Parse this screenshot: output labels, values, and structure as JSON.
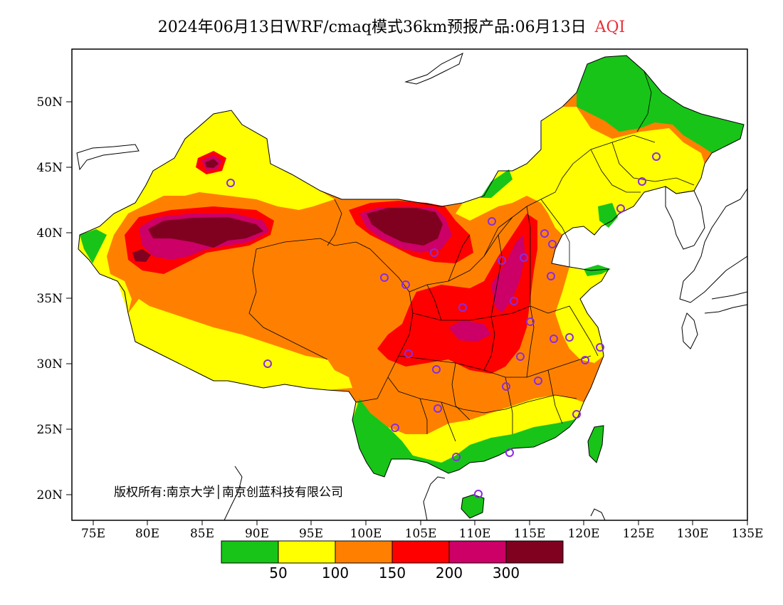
{
  "title": {
    "main": "2024年06月13日WRF/cmaq模式36km预报产品:06月13日",
    "variable": "AQI"
  },
  "axes": {
    "lat_labels": [
      "50N",
      "45N",
      "40N",
      "35N",
      "30N",
      "25N",
      "20N"
    ],
    "lon_labels": [
      "75E",
      "80E",
      "85E",
      "90E",
      "95E",
      "100E",
      "105E",
      "110E",
      "115E",
      "120E",
      "125E",
      "130E",
      "135E"
    ]
  },
  "copyright": "版权所有:南京大学│南京创蓝科技有限公司",
  "legend": {
    "colors": [
      "#18c418",
      "#ffff00",
      "#ff8000",
      "#ff0000",
      "#cc0066",
      "#800020"
    ],
    "labels": [
      "50",
      "100",
      "150",
      "200",
      "300"
    ]
  },
  "colors": {
    "good": "#18c418",
    "moderate": "#ffff00",
    "sensitive": "#ff8000",
    "unhealthy": "#ff0000",
    "very_unhealthy": "#cc0066",
    "hazardous": "#800020",
    "station_marker": "#8a2be2"
  }
}
